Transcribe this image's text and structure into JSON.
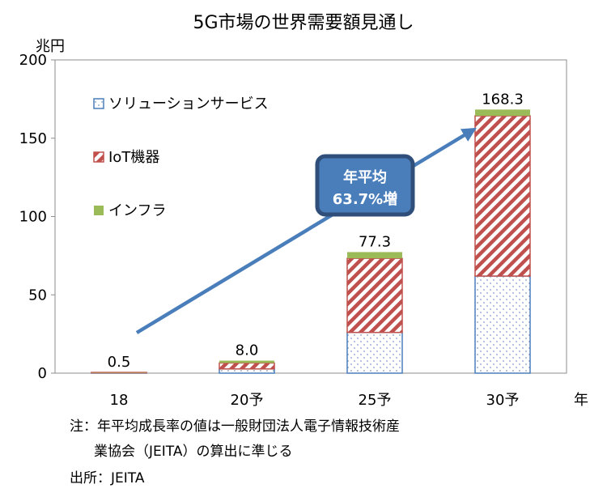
{
  "chart_data": {
    "type": "bar",
    "stacked": true,
    "title": "5G市場の世界需要額見通し",
    "ylabel": "兆円",
    "xlabel": "年",
    "ylim": [
      0,
      200
    ],
    "yticks": [
      0,
      50,
      100,
      150,
      200
    ],
    "categories": [
      "18",
      "20予",
      "25予",
      "30予"
    ],
    "series": [
      {
        "name": "ソリューションサービス",
        "values": [
          0.4,
          2.7,
          26.0,
          62.0
        ],
        "color": "#4a7ebb",
        "pattern": "dots"
      },
      {
        "name": "IoT機器",
        "values": [
          0.05,
          3.8,
          47.3,
          102.3
        ],
        "color": "#c0504d",
        "pattern": "diagonal"
      },
      {
        "name": "インフラ",
        "values": [
          0.05,
          1.5,
          4.0,
          4.0
        ],
        "color": "#9bbb59",
        "pattern": "solid"
      }
    ],
    "totals": [
      "0.5",
      "8.0",
      "77.3",
      "168.3"
    ],
    "legend": "upper-left",
    "annotation": {
      "line1": "年平均",
      "line2": "63.7%増"
    },
    "grid": false
  },
  "notes": {
    "line1": "注：年平均成長率の値は一般財団法人電子情報技術産",
    "line2": "業協会（JEITA）の算出に準じる",
    "source": "出所：JEITA"
  }
}
